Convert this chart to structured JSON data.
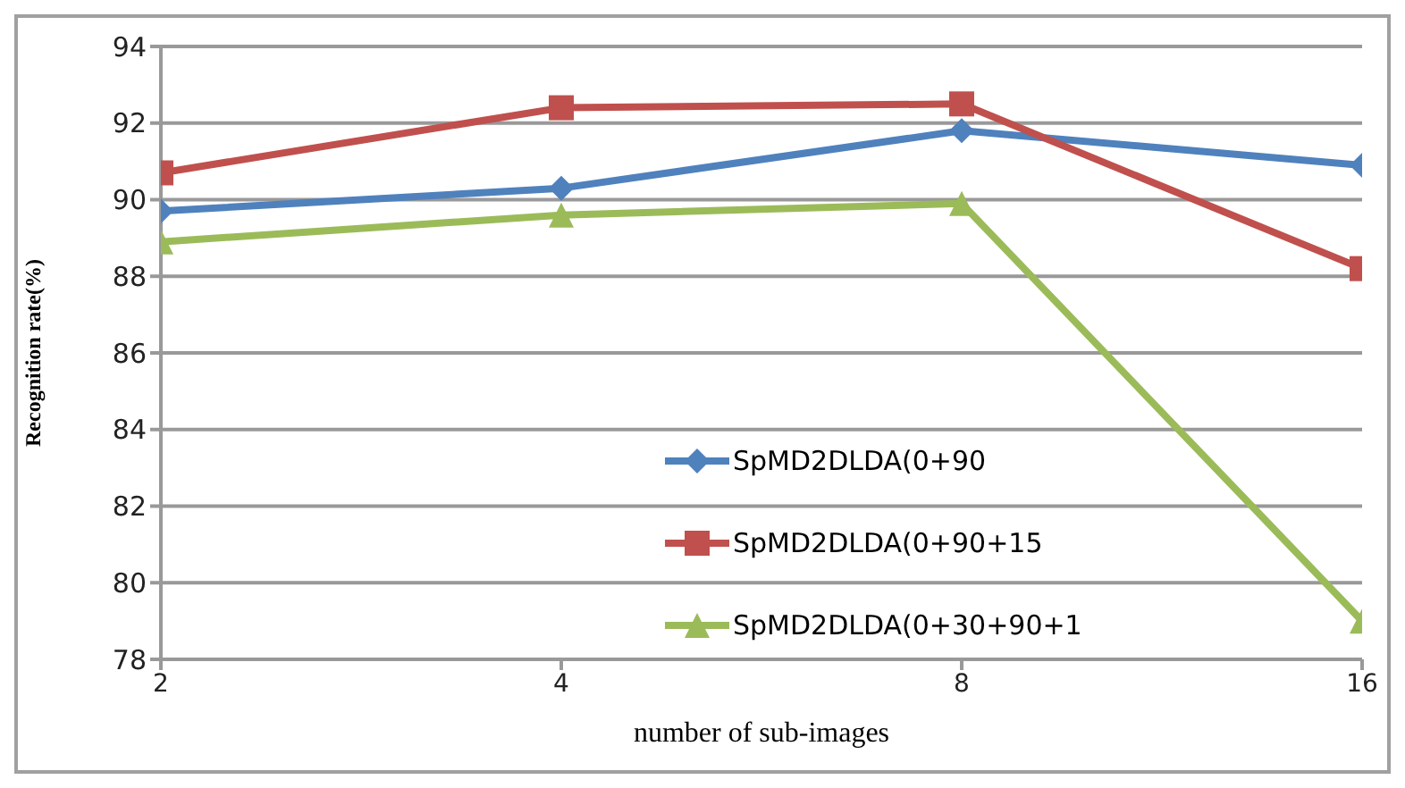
{
  "chart_data": {
    "type": "line",
    "xlabel": "number of  sub-images",
    "ylabel": "Recognition rate(%)",
    "categories": [
      "2",
      "4",
      "8",
      "16"
    ],
    "series": [
      {
        "name": "SpMD2DLDA(0+90",
        "color": "#4f81bd",
        "marker": "diamond",
        "values": [
          89.7,
          90.3,
          91.8,
          90.9
        ]
      },
      {
        "name": "SpMD2DLDA(0+90+15",
        "color": "#c0504d",
        "marker": "square",
        "values": [
          90.7,
          92.4,
          92.5,
          88.2
        ]
      },
      {
        "name": "SpMD2DLDA(0+30+90+1",
        "color": "#9bbb59",
        "marker": "triangle",
        "values": [
          88.9,
          89.6,
          89.9,
          79.0
        ]
      }
    ],
    "ylim": [
      78,
      94
    ],
    "yticks": [
      78,
      80,
      82,
      84,
      86,
      88,
      90,
      92,
      94
    ],
    "grid": "y",
    "legend": "center"
  }
}
